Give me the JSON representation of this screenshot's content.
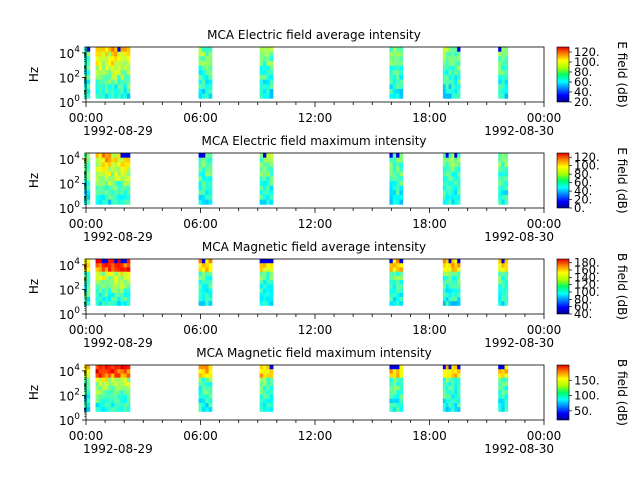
{
  "figure": {
    "start_label": {
      "time": "00:00",
      "date": "1992-08-29"
    },
    "end_label": {
      "time": "00:00",
      "date": "1992-08-30"
    },
    "x_ticks": [
      "00:00",
      "06:00",
      "12:00",
      "18:00",
      "00:00"
    ]
  },
  "chart_data": [
    {
      "type": "heatmap",
      "title": "MCA  Electric field average intensity",
      "ylabel": "Hz",
      "y_ticks": [
        "10^0",
        "10^2",
        "10^4"
      ],
      "ylim": [
        1,
        30000
      ],
      "y_scale": "log",
      "x_range_hours": [
        0,
        24
      ],
      "colorbar": {
        "label": "E field (dB)",
        "ticks": [
          "20.",
          "40.",
          "60.",
          "80.",
          "100.",
          "120."
        ],
        "range": [
          20,
          130
        ]
      },
      "data_segments_hours": [
        [
          -0.1,
          0.2
        ],
        [
          0.5,
          2.3
        ],
        [
          5.9,
          6.6
        ],
        [
          9.1,
          9.8
        ],
        [
          15.9,
          16.6
        ],
        [
          18.7,
          19.6
        ],
        [
          21.6,
          22.1
        ]
      ]
    },
    {
      "type": "heatmap",
      "title": "MCA  Electric field maximum intensity",
      "ylabel": "Hz",
      "y_ticks": [
        "10^0",
        "10^2",
        "10^4"
      ],
      "ylim": [
        1,
        30000
      ],
      "y_scale": "log",
      "x_range_hours": [
        0,
        24
      ],
      "colorbar": {
        "label": "E field (dB)",
        "ticks": [
          "0.",
          "20.",
          "40.",
          "60.",
          "80.",
          "100.",
          "120."
        ],
        "range": [
          0,
          130
        ]
      },
      "data_segments_hours": [
        [
          -0.1,
          0.2
        ],
        [
          0.5,
          2.3
        ],
        [
          5.9,
          6.6
        ],
        [
          9.1,
          9.8
        ],
        [
          15.9,
          16.6
        ],
        [
          18.7,
          19.6
        ],
        [
          21.6,
          22.1
        ]
      ]
    },
    {
      "type": "heatmap",
      "title": "MCA  Magnetic field average intensity",
      "ylabel": "Hz",
      "y_ticks": [
        "10^0",
        "10^2",
        "10^4"
      ],
      "ylim": [
        1,
        30000
      ],
      "y_scale": "log",
      "x_range_hours": [
        0,
        24
      ],
      "colorbar": {
        "label": "B field (dB)",
        "ticks": [
          "40.",
          "60.",
          "80.",
          "100.",
          "120.",
          "140.",
          "160.",
          "180."
        ],
        "range": [
          40,
          190
        ]
      },
      "data_segments_hours": [
        [
          -0.1,
          0.2
        ],
        [
          0.5,
          2.3
        ],
        [
          5.9,
          6.6
        ],
        [
          9.1,
          9.8
        ],
        [
          15.9,
          16.6
        ],
        [
          18.7,
          19.6
        ],
        [
          21.6,
          22.1
        ]
      ]
    },
    {
      "type": "heatmap",
      "title": "MCA  Magnetic field maximum intensity",
      "ylabel": "Hz",
      "y_ticks": [
        "10^0",
        "10^2",
        "10^4"
      ],
      "ylim": [
        1,
        30000
      ],
      "y_scale": "log",
      "x_range_hours": [
        0,
        24
      ],
      "colorbar": {
        "label": "B field (dB)",
        "ticks": [
          "50.",
          "100.",
          "150."
        ],
        "range": [
          20,
          200
        ]
      },
      "data_segments_hours": [
        [
          -0.1,
          0.2
        ],
        [
          0.5,
          2.3
        ],
        [
          5.9,
          6.6
        ],
        [
          9.1,
          9.8
        ],
        [
          15.9,
          16.6
        ],
        [
          18.7,
          19.6
        ],
        [
          21.6,
          22.1
        ]
      ]
    }
  ]
}
